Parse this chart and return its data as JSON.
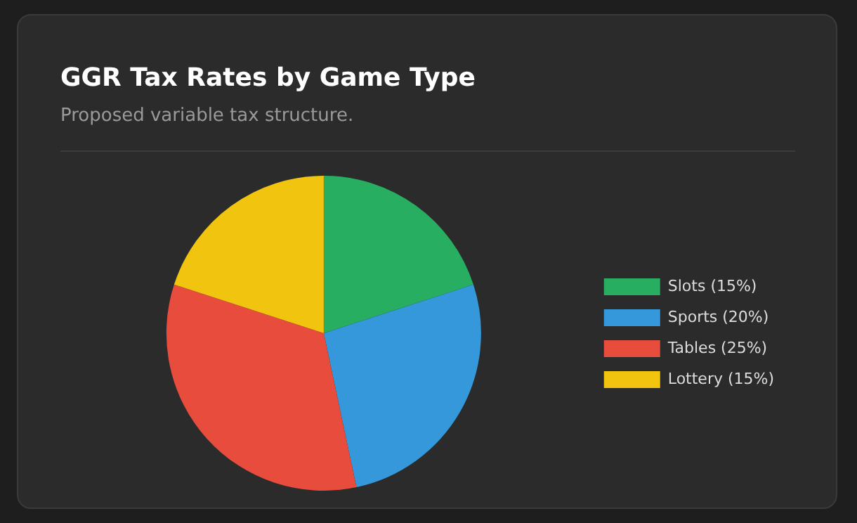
{
  "chart_data": {
    "type": "pie",
    "title": "GGR Tax Rates by Game Type",
    "subtitle": "Proposed variable tax structure.",
    "categories": [
      "Slots (15%)",
      "Sports (20%)",
      "Tables (25%)",
      "Lottery (15%)"
    ],
    "values": [
      15,
      20,
      25,
      15
    ],
    "colors": [
      "#27ae60",
      "#3498db",
      "#e74c3c",
      "#f1c40f"
    ],
    "legend": "right"
  }
}
